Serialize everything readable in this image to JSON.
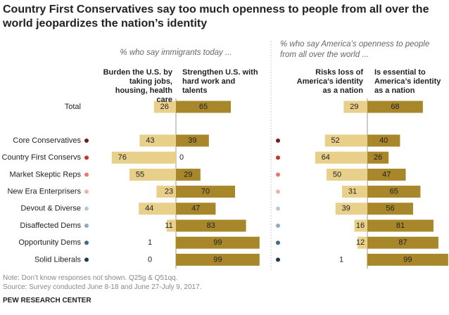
{
  "title": "Country First Conservatives say too much openness to people from all over the world jeopardizes the nation’s identity",
  "chart_data": [
    {
      "type": "diverging_bar",
      "subtitle": "% who say immigrants today ...",
      "categories": [
        "Total",
        "Core Conservatives",
        "Country First Conservs",
        "Market Skeptic Reps",
        "New Era Enterprisers",
        "Devout & Diverse",
        "Disaffected Dems",
        "Opportunity Dems",
        "Solid Liberals"
      ],
      "category_colors": [
        null,
        "#6b1d1d",
        "#c0392b",
        "#e07b6f",
        "#f0b1a8",
        "#b7c9dc",
        "#8fa9c4",
        "#3e6b85",
        "#1f3a4d"
      ],
      "series": [
        {
          "name": "Burden the U.S. by taking jobs, housing, health care",
          "color": "#e8cf8a",
          "values": [
            26,
            43,
            76,
            55,
            23,
            44,
            11,
            1,
            0
          ]
        },
        {
          "name": "Strengthen U.S. with hard work and talents",
          "color": "#a8862a",
          "values": [
            65,
            39,
            0,
            29,
            70,
            47,
            83,
            99,
            99
          ]
        }
      ]
    },
    {
      "type": "diverging_bar",
      "subtitle": "% who say America’s openness to people from all over the world ...",
      "series": [
        {
          "name": "Risks loss of America’s identity as a nation",
          "color": "#e8cf8a",
          "values": [
            29,
            52,
            64,
            50,
            31,
            39,
            16,
            12,
            1
          ]
        },
        {
          "name": "Is essential to America’s identity as a nation",
          "color": "#a8862a",
          "values": [
            68,
            40,
            26,
            47,
            65,
            56,
            81,
            87,
            99
          ]
        }
      ]
    }
  ],
  "notes": [
    "Note: Don’t know responses not shown. Q25g & Q51qq.",
    "Source: Survey conducted June 8-18 and June 27-July 9, 2017."
  ],
  "source": "PEW RESEARCH CENTER"
}
